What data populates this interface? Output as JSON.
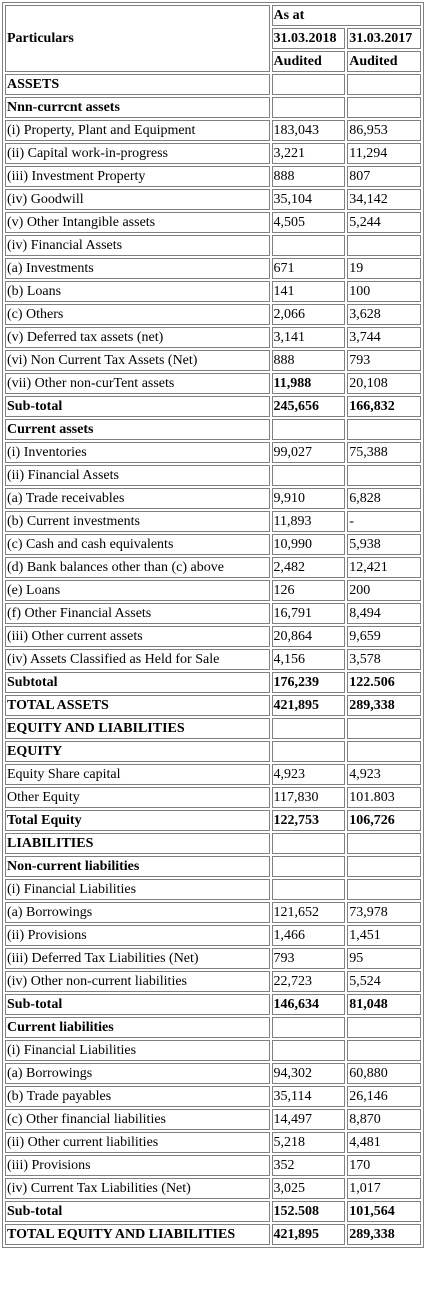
{
  "header": {
    "particulars": "Particulars",
    "as_at": "As at",
    "date_1": "31.03.2018",
    "date_2": "31.03.2017",
    "status_1": "Audited",
    "status_2": "Audited"
  },
  "rows": [
    {
      "label": "ASSETS",
      "v1": "",
      "v2": "",
      "bold": true
    },
    {
      "label": "Nnn-currcnt assets",
      "v1": "",
      "v2": "",
      "bold": true
    },
    {
      "label": "(i) Property, Plant and Equipment",
      "v1": "183,043",
      "v2": "86,953",
      "bold": false
    },
    {
      "label": "(ii) Capital work-in-progress",
      "v1": "3,221",
      "v2": "11,294",
      "bold": false
    },
    {
      "label": "(iii) Investment Property",
      "v1": "888",
      "v2": "807",
      "bold": false
    },
    {
      "label": "(iv) Goodwill",
      "v1": "35,104",
      "v2": "34,142",
      "bold": false
    },
    {
      "label": "(v) Other Intangible assets",
      "v1": "4,505",
      "v2": "5,244",
      "bold": false
    },
    {
      "label": "(iv) Financial Assets",
      "v1": "",
      "v2": "",
      "bold": false
    },
    {
      "label": "(a) Investments",
      "v1": "671",
      "v2": "19",
      "bold": false
    },
    {
      "label": "(b) Loans",
      "v1": "141",
      "v2": "100",
      "bold": false
    },
    {
      "label": "(c) Others",
      "v1": "2,066",
      "v2": "3,628",
      "bold": false
    },
    {
      "label": "(v) Deferred tax assets (net)",
      "v1": "3,141",
      "v2": "3,744",
      "bold": false
    },
    {
      "label": "(vi) Non Current Tax Assets (Net)",
      "v1": "888",
      "v2": "793",
      "bold": false
    },
    {
      "label": "(vii) Other non-curTent assets",
      "v1": "11,988",
      "v2": "20,108",
      "bold": false,
      "bold_v1": true
    },
    {
      "label": "Sub-total",
      "v1": "245,656",
      "v2": "166,832",
      "bold": true
    },
    {
      "label": "Current assets",
      "v1": "",
      "v2": "",
      "bold": true
    },
    {
      "label": "(i) Inventories",
      "v1": "99,027",
      "v2": "75,388",
      "bold": false
    },
    {
      "label": "(ii) Financial Assets",
      "v1": "",
      "v2": "",
      "bold": false
    },
    {
      "label": "(a) Trade receivables",
      "v1": "9,910",
      "v2": "6,828",
      "bold": false
    },
    {
      "label": "(b) Current investments",
      "v1": "11,893",
      "v2": "-",
      "bold": false
    },
    {
      "label": "(c) Cash and cash equivalents",
      "v1": "10,990",
      "v2": "5,938",
      "bold": false
    },
    {
      "label": "(d) Bank balances other than (c) above",
      "v1": "2,482",
      "v2": "12,421",
      "bold": false
    },
    {
      "label": "(e) Loans",
      "v1": "126",
      "v2": "200",
      "bold": false
    },
    {
      "label": "(f) Other Financial Assets",
      "v1": "16,791",
      "v2": "8,494",
      "bold": false
    },
    {
      "label": "(iii) Other current assets",
      "v1": "20,864",
      "v2": "9,659",
      "bold": false
    },
    {
      "label": "(iv) Assets Classified as Held for Sale",
      "v1": "4,156",
      "v2": "3,578",
      "bold": false
    },
    {
      "label": "Subtotal",
      "v1": "176,239",
      "v2": "122.506",
      "bold": true
    },
    {
      "label": "TOTAL ASSETS",
      "v1": "421,895",
      "v2": "289,338",
      "bold": true
    },
    {
      "label": "EQUITY AND LIABILITIES",
      "v1": "",
      "v2": "",
      "bold": true
    },
    {
      "label": "EQUITY",
      "v1": "",
      "v2": "",
      "bold": true
    },
    {
      "label": "Equity Share capital",
      "v1": "4,923",
      "v2": "4,923",
      "bold": false
    },
    {
      "label": "Other Equity",
      "v1": "117,830",
      "v2": "101.803",
      "bold": false
    },
    {
      "label": "Total Equity",
      "v1": "122,753",
      "v2": "106,726",
      "bold": true
    },
    {
      "label": "LIABILITIES",
      "v1": "",
      "v2": "",
      "bold": true
    },
    {
      "label": "Non-current liabilities",
      "v1": "",
      "v2": "",
      "bold": true
    },
    {
      "label": "(i) Financial Liabilities",
      "v1": "",
      "v2": "",
      "bold": false
    },
    {
      "label": "(a) Borrowings",
      "v1": "121,652",
      "v2": "73,978",
      "bold": false
    },
    {
      "label": "(ii) Provisions",
      "v1": "1,466",
      "v2": "1,451",
      "bold": false
    },
    {
      "label": "(iii) Deferred Tax Liabilities (Net)",
      "v1": "793",
      "v2": "95",
      "bold": false
    },
    {
      "label": "(iv) Other non-current liabilities",
      "v1": "22,723",
      "v2": "5,524",
      "bold": false
    },
    {
      "label": "Sub-total",
      "v1": "146,634",
      "v2": "81,048",
      "bold": true
    },
    {
      "label": "Current liabilities",
      "v1": "",
      "v2": "",
      "bold": true
    },
    {
      "label": "(i) Financial Liabilities",
      "v1": "",
      "v2": "",
      "bold": false
    },
    {
      "label": "(a) Borrowings",
      "v1": "94,302",
      "v2": "60,880",
      "bold": false
    },
    {
      "label": "(b) Trade payables",
      "v1": "35,114",
      "v2": "26,146",
      "bold": false
    },
    {
      "label": "(c) Other financial liabilities",
      "v1": "14,497",
      "v2": "8,870",
      "bold": false
    },
    {
      "label": "(ii) Other current liabilities",
      "v1": "5,218",
      "v2": "4,481",
      "bold": false
    },
    {
      "label": "(iii) Provisions",
      "v1": "352",
      "v2": "170",
      "bold": false
    },
    {
      "label": "(iv) Current Tax Liabilities (Net)",
      "v1": "3,025",
      "v2": "1,017",
      "bold": false
    },
    {
      "label": "Sub-total",
      "v1": "152.508",
      "v2": "101,564",
      "bold": true
    },
    {
      "label": "TOTAL EQUITY AND LIABILITIES",
      "v1": "421,895",
      "v2": "289,338",
      "bold": true
    }
  ]
}
